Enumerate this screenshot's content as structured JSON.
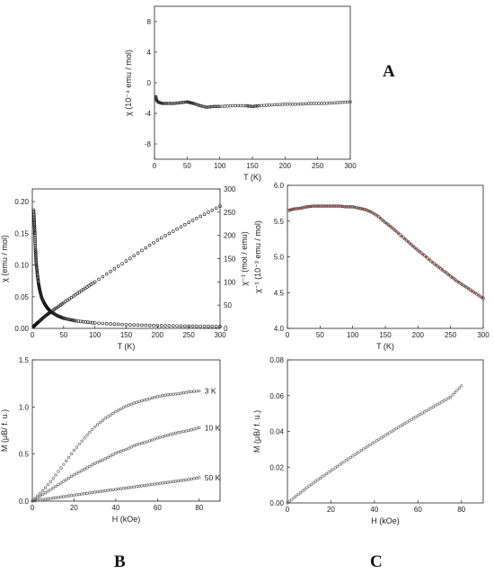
{
  "panel_letters": {
    "a": "A",
    "b": "B",
    "c": "C"
  },
  "chart_data": [
    {
      "id": "A",
      "type": "scatter",
      "xlabel": "T (K)",
      "ylabel": "χ (10⁻⁴ emu / mol)",
      "xlim": [
        0,
        300
      ],
      "ylim": [
        -10,
        10
      ],
      "xticks": [
        0,
        50,
        100,
        150,
        200,
        250,
        300
      ],
      "yticks": [
        -8,
        -4,
        0,
        4,
        8
      ],
      "series": [
        {
          "x": [
            2,
            3,
            5,
            8,
            12,
            20,
            30,
            40,
            50,
            55,
            60,
            70,
            80,
            90,
            100,
            120,
            140,
            150,
            160,
            180,
            200,
            220,
            240,
            260,
            280,
            300
          ],
          "y": [
            -1.8,
            -2.2,
            -2.5,
            -2.6,
            -2.7,
            -2.7,
            -2.7,
            -2.6,
            -2.5,
            -2.6,
            -2.7,
            -3.0,
            -3.2,
            -3.1,
            -3.1,
            -3.0,
            -3.0,
            -3.1,
            -3.0,
            -2.9,
            -2.8,
            -2.8,
            -2.7,
            -2.7,
            -2.6,
            -2.5
          ]
        }
      ]
    },
    {
      "id": "B-top",
      "type": "scatter",
      "xlabel": "T (K)",
      "ylabel": "χ (emu / mol)",
      "ylabel_right": "χ⁻¹ (mol / emu)",
      "xlim": [
        0,
        300
      ],
      "ylim": [
        0,
        0.22
      ],
      "ylim_right": [
        0,
        300
      ],
      "xticks": [
        0,
        50,
        100,
        150,
        200,
        250,
        300
      ],
      "yticks": [
        "0.00",
        "0.05",
        "0.10",
        "0.15",
        "0.20"
      ],
      "yticks_right": [
        0,
        50,
        100,
        150,
        200,
        250,
        300
      ],
      "series": [
        {
          "axis": "left",
          "x": [
            2,
            3,
            4,
            5,
            6,
            8,
            10,
            12,
            15,
            20,
            25,
            30,
            40,
            50,
            70,
            100,
            150,
            200,
            250,
            300
          ],
          "y": [
            0.187,
            0.17,
            0.15,
            0.125,
            0.105,
            0.085,
            0.07,
            0.06,
            0.048,
            0.038,
            0.031,
            0.026,
            0.02,
            0.016,
            0.0118,
            0.0085,
            0.0058,
            0.0044,
            0.0036,
            0.003
          ]
        },
        {
          "axis": "right",
          "x": [
            2,
            5,
            10,
            20,
            30,
            50,
            75,
            100,
            150,
            200,
            250,
            300
          ],
          "y": [
            4,
            8,
            14,
            26,
            36,
            55,
            78,
            100,
            145,
            190,
            228,
            263
          ]
        }
      ]
    },
    {
      "id": "B-bottom",
      "type": "line",
      "xlabel": "H (kOe)",
      "ylabel": "M (μB/ f. u.)",
      "xlim": [
        0,
        90
      ],
      "ylim": [
        0,
        1.5
      ],
      "xticks": [
        0,
        20,
        40,
        60,
        80
      ],
      "yticks": [
        "0.0",
        "0.5",
        "1.0",
        "1.5"
      ],
      "x": [
        0,
        5,
        10,
        15,
        20,
        25,
        30,
        35,
        40,
        45,
        50,
        55,
        60,
        65,
        70,
        75,
        80
      ],
      "series": [
        {
          "name": "3 K",
          "values": [
            0,
            0.11,
            0.24,
            0.39,
            0.54,
            0.67,
            0.79,
            0.88,
            0.95,
            1.01,
            1.05,
            1.08,
            1.11,
            1.13,
            1.14,
            1.16,
            1.17
          ]
        },
        {
          "name": "10 K",
          "values": [
            0,
            0.07,
            0.14,
            0.21,
            0.28,
            0.34,
            0.4,
            0.45,
            0.51,
            0.55,
            0.6,
            0.63,
            0.67,
            0.7,
            0.73,
            0.75,
            0.78
          ]
        },
        {
          "name": "50 K",
          "values": [
            0,
            0.016,
            0.032,
            0.048,
            0.064,
            0.08,
            0.096,
            0.11,
            0.125,
            0.14,
            0.155,
            0.17,
            0.185,
            0.2,
            0.215,
            0.23,
            0.25
          ]
        }
      ]
    },
    {
      "id": "C-top",
      "type": "scatter",
      "xlabel": "T (K)",
      "ylabel": "χ⁻¹ (10⁻³ emu / mol)",
      "xlim": [
        0,
        300
      ],
      "ylim": [
        4.0,
        6.0
      ],
      "xticks": [
        0,
        50,
        100,
        150,
        200,
        250,
        300
      ],
      "yticks": [
        "4.0",
        "4.5",
        "5.0",
        "5.5",
        "6.0"
      ],
      "fit_color": "#c0392b",
      "series": [
        {
          "x": [
            2,
            10,
            20,
            30,
            40,
            50,
            60,
            70,
            80,
            90,
            100,
            110,
            120,
            130,
            140,
            150,
            160,
            170,
            180,
            190,
            200,
            210,
            220,
            230,
            240,
            250,
            260,
            270,
            280,
            290,
            300
          ],
          "y": [
            5.65,
            5.67,
            5.68,
            5.7,
            5.71,
            5.71,
            5.71,
            5.71,
            5.71,
            5.7,
            5.7,
            5.68,
            5.66,
            5.62,
            5.56,
            5.48,
            5.41,
            5.33,
            5.25,
            5.17,
            5.09,
            5.02,
            4.94,
            4.87,
            4.8,
            4.73,
            4.66,
            4.6,
            4.54,
            4.48,
            4.42
          ]
        }
      ]
    },
    {
      "id": "C-bottom",
      "type": "line",
      "xlabel": "H (kOe)",
      "ylabel": "M (μB/ f. u.)",
      "xlim": [
        0,
        90
      ],
      "ylim": [
        0,
        0.08
      ],
      "xticks": [
        0,
        20,
        40,
        60,
        80
      ],
      "yticks": [
        "0.00",
        "0.02",
        "0.04",
        "0.06",
        "0.08"
      ],
      "series": [
        {
          "x": [
            0,
            5,
            10,
            15,
            20,
            25,
            30,
            35,
            40,
            45,
            50,
            55,
            60,
            65,
            70,
            75,
            80
          ],
          "y": [
            0,
            0.0048,
            0.0095,
            0.0138,
            0.018,
            0.0222,
            0.0262,
            0.0302,
            0.034,
            0.0378,
            0.0415,
            0.0452,
            0.0488,
            0.0523,
            0.0558,
            0.0592,
            0.0655
          ]
        }
      ]
    }
  ]
}
